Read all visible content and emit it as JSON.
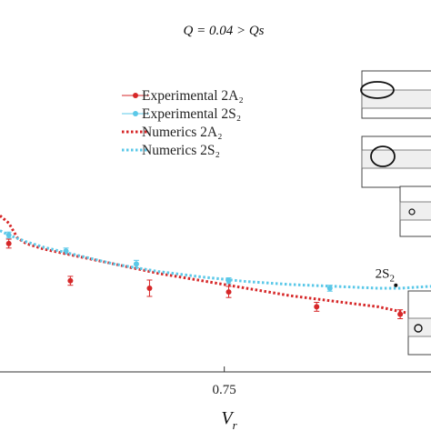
{
  "chart_data": {
    "type": "scatter",
    "title": "Q = 0.04 > Qs",
    "xlabel": "V_r",
    "ylabel": "",
    "x_tick_labels": [
      "0.75"
    ],
    "xlim": [
      0.495,
      0.985
    ],
    "ylim": [
      0.0,
      1.0
    ],
    "legend_position": "upper-center",
    "grid": false,
    "series": [
      {
        "name": "Experimental 2A₂",
        "kind": "points-with-errorbars",
        "color": "#d62728",
        "points": [
          {
            "x": 0.505,
            "y": 0.345,
            "err": 0.012
          },
          {
            "x": 0.575,
            "y": 0.245,
            "err": 0.012
          },
          {
            "x": 0.665,
            "y": 0.225,
            "err": 0.022
          },
          {
            "x": 0.755,
            "y": 0.215,
            "err": 0.015
          },
          {
            "x": 0.855,
            "y": 0.175,
            "err": 0.012
          },
          {
            "x": 0.95,
            "y": 0.155,
            "err": 0.012
          }
        ]
      },
      {
        "name": "Experimental 2S₂",
        "kind": "points-with-errorbars",
        "color": "#5bc8e8",
        "points": [
          {
            "x": 0.505,
            "y": 0.368,
            "err": 0.008
          },
          {
            "x": 0.57,
            "y": 0.325,
            "err": 0.008
          },
          {
            "x": 0.65,
            "y": 0.29,
            "err": 0.01
          },
          {
            "x": 0.755,
            "y": 0.245,
            "err": 0.008
          },
          {
            "x": 0.87,
            "y": 0.225,
            "err": 0.008
          }
        ]
      },
      {
        "name": "Numerics 2A₂",
        "kind": "dotted-line",
        "color": "#d62728",
        "x": [
          0.495,
          0.505,
          0.515,
          0.525,
          0.545,
          0.575,
          0.625,
          0.675,
          0.725,
          0.775,
          0.825,
          0.875,
          0.925,
          0.955,
          0.985
        ],
        "y": [
          0.42,
          0.4,
          0.36,
          0.345,
          0.33,
          0.315,
          0.29,
          0.265,
          0.245,
          0.225,
          0.205,
          0.19,
          0.175,
          0.16,
          0.15
        ]
      },
      {
        "name": "Numerics 2S₂",
        "kind": "dotted-line",
        "color": "#5bc8e8",
        "x": [
          0.495,
          0.505,
          0.525,
          0.545,
          0.575,
          0.625,
          0.675,
          0.725,
          0.775,
          0.825,
          0.875,
          0.925,
          0.95,
          0.985
        ],
        "y": [
          0.38,
          0.368,
          0.35,
          0.335,
          0.318,
          0.29,
          0.27,
          0.255,
          0.243,
          0.235,
          0.23,
          0.225,
          0.225,
          0.23
        ]
      }
    ],
    "annotations": [
      {
        "id": "2S2",
        "base": "2S",
        "sub": "2",
        "x": 0.945,
        "y": 0.233
      }
    ],
    "insets": 4
  }
}
